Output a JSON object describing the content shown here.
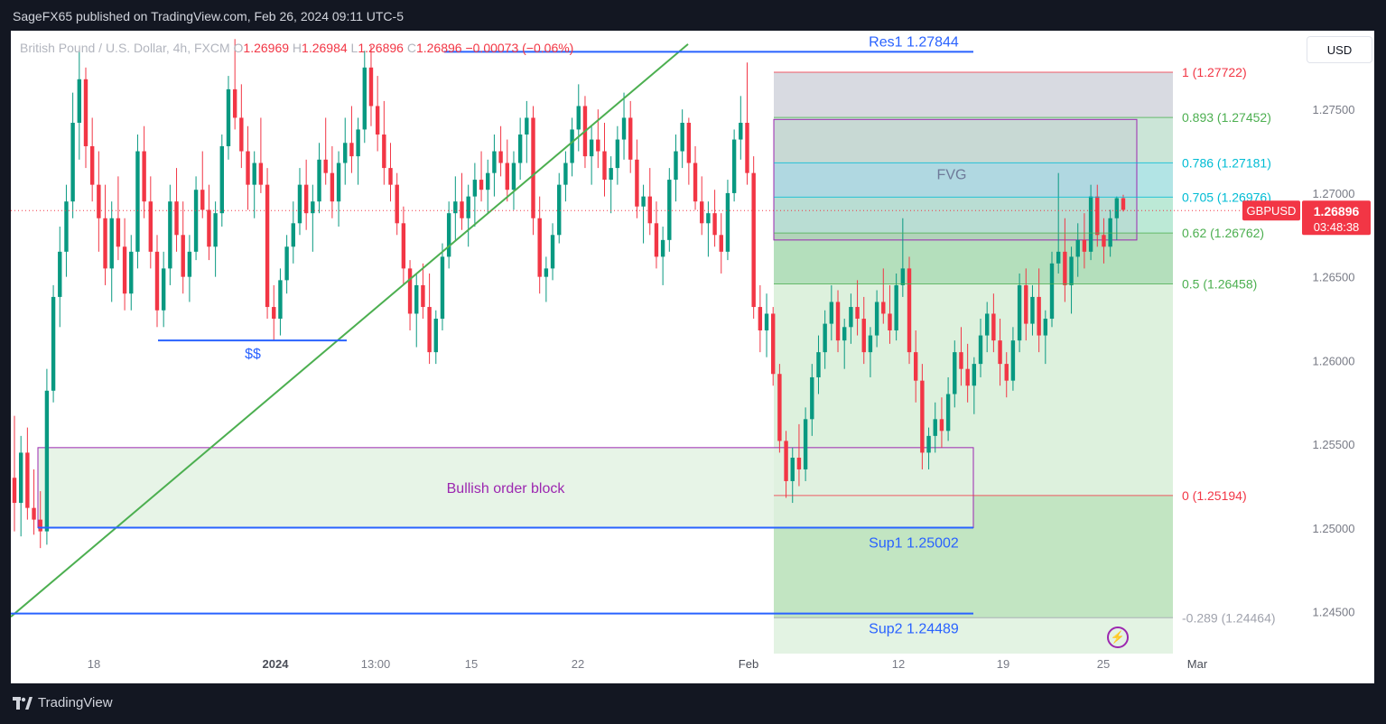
{
  "header": {
    "published": "SageFX65 published on TradingView.com, Feb 26, 2024 09:11 UTC-5"
  },
  "footer": {
    "logo_text": "TradingView"
  },
  "currency_button": "USD",
  "legend": {
    "symbol": "British Pound / U.S. Dollar, 4h, FXCM",
    "open_label": "O",
    "open": "1.26969",
    "high_label": "H",
    "high": "1.26984",
    "low_label": "L",
    "low": "1.26896",
    "close_label": "C",
    "close": "1.26896",
    "change": "−0.00073 (−0.06%)"
  },
  "colors": {
    "up": "#089981",
    "down": "#f23645",
    "trend": "#4caf50",
    "level": "#2962ff",
    "ob_fill": "#e1f1e1",
    "ob_border": "#9c27b0",
    "fvg_border": "#9c27b0",
    "fib_red": "#f23645",
    "fib_green": "#4caf50",
    "fib_blue": "#00bcd4"
  },
  "chart_data": {
    "type": "candlestick",
    "symbol": "GBPUSD",
    "interval": "4h",
    "y_range": [
      1.2425,
      1.2797
    ],
    "y_ticks": [
      "1.27500",
      "1.27000",
      "1.26500",
      "1.26000",
      "1.25500",
      "1.25000",
      "1.24500"
    ],
    "x_ticks": [
      "18",
      "2024",
      "13:00",
      "15",
      "22",
      "Feb",
      "12",
      "19",
      "25",
      "Mar"
    ],
    "last_price": {
      "label": "GBPUSD",
      "price": "1.26896",
      "countdown": "03:48:38",
      "value": 1.26896
    },
    "levels": [
      {
        "label": "Res1 1.27844",
        "value": 1.27844
      },
      {
        "label": "Sup1 1.25002",
        "value": 1.25002
      },
      {
        "label": "Sup2 1.24489",
        "value": 1.24489
      },
      {
        "label": "$$",
        "value": 1.2612
      }
    ],
    "zones": [
      {
        "label": "Bullish order block",
        "top": 1.2548,
        "bottom": 1.25002
      },
      {
        "label": "FVG",
        "top": 1.2744,
        "bottom": 1.2672
      }
    ],
    "fib_levels": [
      {
        "label": "1 (1.27722)",
        "value": 1.27722
      },
      {
        "label": "0.893 (1.27452)",
        "value": 1.27452
      },
      {
        "label": "0.786 (1.27181)",
        "value": 1.27181
      },
      {
        "label": "0.705 (1.26976)",
        "value": 1.26976
      },
      {
        "label": "0.62 (1.26762)",
        "value": 1.26762
      },
      {
        "label": "0.5 (1.26458)",
        "value": 1.26458
      },
      {
        "label": "0 (1.25194)",
        "value": 1.25194
      },
      {
        "label": "-0.289 (1.24464)",
        "value": 1.24464
      }
    ],
    "trendline": [
      [
        1.2447,
        0
      ],
      [
        1.2789,
        1
      ]
    ],
    "candles": [
      [
        1.253,
        1.2567,
        1.2498,
        1.2515
      ],
      [
        1.2515,
        1.2555,
        1.2495,
        1.2545
      ],
      [
        1.2545,
        1.256,
        1.2505,
        1.2512
      ],
      [
        1.2512,
        1.2535,
        1.2496,
        1.2505
      ],
      [
        1.2505,
        1.2522,
        1.2488,
        1.2498
      ],
      [
        1.2498,
        1.2595,
        1.249,
        1.2582
      ],
      [
        1.2582,
        1.2645,
        1.2575,
        1.2638
      ],
      [
        1.2638,
        1.268,
        1.262,
        1.2665
      ],
      [
        1.2665,
        1.2705,
        1.265,
        1.2695
      ],
      [
        1.2695,
        1.276,
        1.2685,
        1.2742
      ],
      [
        1.2742,
        1.2785,
        1.272,
        1.2768
      ],
      [
        1.2768,
        1.2775,
        1.2715,
        1.2728
      ],
      [
        1.2728,
        1.2745,
        1.2695,
        1.2705
      ],
      [
        1.2705,
        1.2725,
        1.2665,
        1.2685
      ],
      [
        1.2685,
        1.2705,
        1.2645,
        1.2655
      ],
      [
        1.2655,
        1.2695,
        1.2635,
        1.2685
      ],
      [
        1.2685,
        1.271,
        1.266,
        1.2668
      ],
      [
        1.2668,
        1.2685,
        1.263,
        1.264
      ],
      [
        1.264,
        1.2675,
        1.263,
        1.2665
      ],
      [
        1.2665,
        1.2735,
        1.2655,
        1.2725
      ],
      [
        1.2725,
        1.274,
        1.2685,
        1.2695
      ],
      [
        1.2695,
        1.271,
        1.2655,
        1.2665
      ],
      [
        1.2665,
        1.2675,
        1.262,
        1.263
      ],
      [
        1.263,
        1.2665,
        1.262,
        1.2655
      ],
      [
        1.2655,
        1.2705,
        1.2645,
        1.2695
      ],
      [
        1.2695,
        1.2715,
        1.2665,
        1.2675
      ],
      [
        1.2675,
        1.2695,
        1.264,
        1.265
      ],
      [
        1.265,
        1.2675,
        1.2635,
        1.2665
      ],
      [
        1.2665,
        1.271,
        1.266,
        1.2702
      ],
      [
        1.2702,
        1.2725,
        1.2685,
        1.269
      ],
      [
        1.269,
        1.2705,
        1.266,
        1.2668
      ],
      [
        1.2668,
        1.2695,
        1.265,
        1.2688
      ],
      [
        1.2688,
        1.2735,
        1.268,
        1.2728
      ],
      [
        1.2728,
        1.277,
        1.272,
        1.2762
      ],
      [
        1.2762,
        1.2792,
        1.2738,
        1.2745
      ],
      [
        1.2745,
        1.2765,
        1.2715,
        1.2725
      ],
      [
        1.2725,
        1.274,
        1.269,
        1.2705
      ],
      [
        1.2705,
        1.2725,
        1.2685,
        1.2718
      ],
      [
        1.2718,
        1.2745,
        1.27,
        1.2705
      ],
      [
        1.2705,
        1.2715,
        1.2625,
        1.2632
      ],
      [
        1.2632,
        1.2645,
        1.2612,
        1.2625
      ],
      [
        1.2625,
        1.2655,
        1.2615,
        1.2648
      ],
      [
        1.2648,
        1.2675,
        1.264,
        1.2668
      ],
      [
        1.2668,
        1.2695,
        1.2658,
        1.2682
      ],
      [
        1.2682,
        1.2715,
        1.2675,
        1.2705
      ],
      [
        1.2705,
        1.272,
        1.2678,
        1.2688
      ],
      [
        1.2688,
        1.2705,
        1.2665,
        1.2695
      ],
      [
        1.2695,
        1.273,
        1.2688,
        1.272
      ],
      [
        1.272,
        1.2745,
        1.2705,
        1.2712
      ],
      [
        1.2712,
        1.2728,
        1.2685,
        1.2695
      ],
      [
        1.2695,
        1.2725,
        1.268,
        1.2718
      ],
      [
        1.2718,
        1.2745,
        1.2705,
        1.273
      ],
      [
        1.273,
        1.2752,
        1.2712,
        1.2722
      ],
      [
        1.2722,
        1.2745,
        1.2705,
        1.2738
      ],
      [
        1.2738,
        1.2785,
        1.273,
        1.2775
      ],
      [
        1.2775,
        1.2788,
        1.274,
        1.2752
      ],
      [
        1.2752,
        1.277,
        1.2725,
        1.2735
      ],
      [
        1.2735,
        1.2755,
        1.2705,
        1.2715
      ],
      [
        1.2715,
        1.273,
        1.2695,
        1.2705
      ],
      [
        1.2705,
        1.2712,
        1.2675,
        1.2682
      ],
      [
        1.2682,
        1.2692,
        1.2645,
        1.2655
      ],
      [
        1.2655,
        1.266,
        1.2618,
        1.2628
      ],
      [
        1.2628,
        1.2652,
        1.2608,
        1.2645
      ],
      [
        1.2645,
        1.2658,
        1.2625,
        1.2632
      ],
      [
        1.2632,
        1.2652,
        1.2598,
        1.2605
      ],
      [
        1.2605,
        1.263,
        1.2598,
        1.2625
      ],
      [
        1.2625,
        1.267,
        1.2618,
        1.2662
      ],
      [
        1.2662,
        1.2695,
        1.2655,
        1.2688
      ],
      [
        1.2688,
        1.271,
        1.2672,
        1.2695
      ],
      [
        1.2695,
        1.2712,
        1.2678,
        1.2685
      ],
      [
        1.2685,
        1.2705,
        1.2668,
        1.2698
      ],
      [
        1.2698,
        1.2718,
        1.268,
        1.2708
      ],
      [
        1.2708,
        1.2725,
        1.2695,
        1.2702
      ],
      [
        1.2702,
        1.272,
        1.2688,
        1.2712
      ],
      [
        1.2712,
        1.2735,
        1.2698,
        1.2725
      ],
      [
        1.2725,
        1.274,
        1.271,
        1.2718
      ],
      [
        1.2718,
        1.2732,
        1.2695,
        1.2702
      ],
      [
        1.2702,
        1.2725,
        1.269,
        1.2718
      ],
      [
        1.2718,
        1.2745,
        1.2708,
        1.2735
      ],
      [
        1.2735,
        1.2755,
        1.2718,
        1.2745
      ],
      [
        1.2745,
        1.2752,
        1.2675,
        1.2685
      ],
      [
        1.2685,
        1.2698,
        1.264,
        1.265
      ],
      [
        1.265,
        1.2662,
        1.2635,
        1.2655
      ],
      [
        1.2655,
        1.2682,
        1.2648,
        1.2675
      ],
      [
        1.2675,
        1.2712,
        1.267,
        1.2705
      ],
      [
        1.2705,
        1.2725,
        1.2695,
        1.2718
      ],
      [
        1.2718,
        1.2745,
        1.271,
        1.2738
      ],
      [
        1.2738,
        1.2765,
        1.2725,
        1.2752
      ],
      [
        1.2752,
        1.2758,
        1.2715,
        1.2722
      ],
      [
        1.2722,
        1.274,
        1.2705,
        1.2732
      ],
      [
        1.2732,
        1.275,
        1.2715,
        1.2725
      ],
      [
        1.2725,
        1.2742,
        1.2698,
        1.2708
      ],
      [
        1.2708,
        1.2722,
        1.2688,
        1.2715
      ],
      [
        1.2715,
        1.274,
        1.2705,
        1.2732
      ],
      [
        1.2732,
        1.276,
        1.272,
        1.2745
      ],
      [
        1.2745,
        1.2755,
        1.2712,
        1.272
      ],
      [
        1.272,
        1.2732,
        1.2685,
        1.2692
      ],
      [
        1.2692,
        1.2705,
        1.267,
        1.2698
      ],
      [
        1.2698,
        1.2715,
        1.2675,
        1.2682
      ],
      [
        1.2682,
        1.2695,
        1.2655,
        1.2662
      ],
      [
        1.2662,
        1.268,
        1.2645,
        1.2672
      ],
      [
        1.2672,
        1.2715,
        1.2665,
        1.2708
      ],
      [
        1.2708,
        1.2735,
        1.2695,
        1.2725
      ],
      [
        1.2725,
        1.275,
        1.2715,
        1.2742
      ],
      [
        1.2742,
        1.2745,
        1.2705,
        1.2718
      ],
      [
        1.2718,
        1.2728,
        1.269,
        1.2695
      ],
      [
        1.2695,
        1.271,
        1.2675,
        1.2682
      ],
      [
        1.2682,
        1.2695,
        1.2662,
        1.2688
      ],
      [
        1.2688,
        1.2702,
        1.2668,
        1.2675
      ],
      [
        1.2675,
        1.2688,
        1.2652,
        1.2665
      ],
      [
        1.2665,
        1.2708,
        1.266,
        1.27
      ],
      [
        1.27,
        1.2738,
        1.2695,
        1.2732
      ],
      [
        1.2732,
        1.2758,
        1.272,
        1.2742
      ],
      [
        1.2742,
        1.2778,
        1.2705,
        1.2712
      ],
      [
        1.2712,
        1.2722,
        1.2625,
        1.2632
      ],
      [
        1.2632,
        1.2645,
        1.2605,
        1.2618
      ],
      [
        1.2618,
        1.264,
        1.2602,
        1.2628
      ],
      [
        1.2628,
        1.2632,
        1.2585,
        1.2592
      ],
      [
        1.2592,
        1.2598,
        1.2545,
        1.2552
      ],
      [
        1.2552,
        1.2558,
        1.2518,
        1.2528
      ],
      [
        1.2528,
        1.2548,
        1.2515,
        1.2542
      ],
      [
        1.2542,
        1.2562,
        1.2525,
        1.2535
      ],
      [
        1.2535,
        1.2572,
        1.2528,
        1.2565
      ],
      [
        1.2565,
        1.2598,
        1.2555,
        1.259
      ],
      [
        1.259,
        1.2615,
        1.258,
        1.2605
      ],
      [
        1.2605,
        1.263,
        1.2595,
        1.2622
      ],
      [
        1.2622,
        1.2645,
        1.2612,
        1.2635
      ],
      [
        1.2635,
        1.2642,
        1.2605,
        1.2612
      ],
      [
        1.2612,
        1.2625,
        1.2595,
        1.262
      ],
      [
        1.262,
        1.264,
        1.261,
        1.2632
      ],
      [
        1.2632,
        1.2648,
        1.2615,
        1.2625
      ],
      [
        1.2625,
        1.2638,
        1.2598,
        1.2605
      ],
      [
        1.2605,
        1.262,
        1.259,
        1.2615
      ],
      [
        1.2615,
        1.2642,
        1.2608,
        1.2635
      ],
      [
        1.2635,
        1.2655,
        1.2622,
        1.2628
      ],
      [
        1.2628,
        1.2645,
        1.261,
        1.2618
      ],
      [
        1.2618,
        1.2652,
        1.2612,
        1.2645
      ],
      [
        1.2645,
        1.2685,
        1.2638,
        1.2655
      ],
      [
        1.2655,
        1.2662,
        1.2598,
        1.2605
      ],
      [
        1.2605,
        1.2618,
        1.2575,
        1.2588
      ],
      [
        1.2588,
        1.2598,
        1.2535,
        1.2545
      ],
      [
        1.2545,
        1.256,
        1.2535,
        1.2555
      ],
      [
        1.2555,
        1.2575,
        1.2545,
        1.2565
      ],
      [
        1.2565,
        1.2578,
        1.2548,
        1.2558
      ],
      [
        1.2558,
        1.259,
        1.2552,
        1.258
      ],
      [
        1.258,
        1.2612,
        1.2572,
        1.2605
      ],
      [
        1.2605,
        1.262,
        1.2585,
        1.2595
      ],
      [
        1.2595,
        1.261,
        1.2575,
        1.2585
      ],
      [
        1.2585,
        1.2602,
        1.2568,
        1.2598
      ],
      [
        1.2598,
        1.2625,
        1.259,
        1.2615
      ],
      [
        1.2615,
        1.2635,
        1.2605,
        1.2628
      ],
      [
        1.2628,
        1.264,
        1.2605,
        1.2612
      ],
      [
        1.2612,
        1.2625,
        1.2585,
        1.2598
      ],
      [
        1.2598,
        1.2605,
        1.2578,
        1.2588
      ],
      [
        1.2588,
        1.262,
        1.2582,
        1.2612
      ],
      [
        1.2612,
        1.2652,
        1.2605,
        1.2645
      ],
      [
        1.2645,
        1.2655,
        1.2612,
        1.2622
      ],
      [
        1.2622,
        1.2645,
        1.2615,
        1.2638
      ],
      [
        1.2638,
        1.2655,
        1.2605,
        1.2615
      ],
      [
        1.2615,
        1.263,
        1.2598,
        1.2625
      ],
      [
        1.2625,
        1.2665,
        1.262,
        1.2658
      ],
      [
        1.2658,
        1.2712,
        1.2652,
        1.2665
      ],
      [
        1.2665,
        1.2685,
        1.2635,
        1.2645
      ],
      [
        1.2645,
        1.2668,
        1.2628,
        1.2662
      ],
      [
        1.2662,
        1.2682,
        1.265,
        1.2672
      ],
      [
        1.2672,
        1.2688,
        1.2655,
        1.2665
      ],
      [
        1.2665,
        1.2705,
        1.266,
        1.2698
      ],
      [
        1.2698,
        1.2705,
        1.2668,
        1.2675
      ],
      [
        1.2675,
        1.2685,
        1.2658,
        1.2668
      ],
      [
        1.2668,
        1.269,
        1.2662,
        1.2685
      ],
      [
        1.2685,
        1.2698,
        1.2672,
        1.2697
      ],
      [
        1.2697,
        1.2699,
        1.2689,
        1.269
      ]
    ]
  }
}
